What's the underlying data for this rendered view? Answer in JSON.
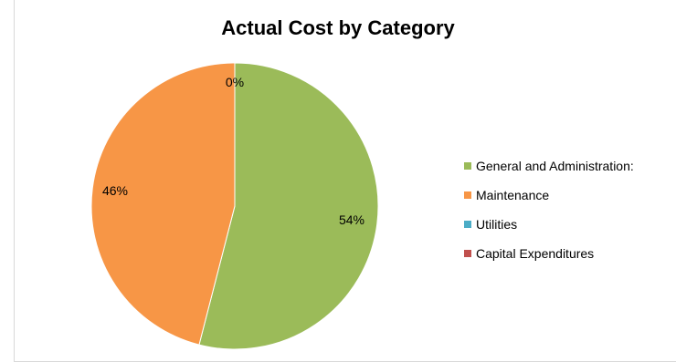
{
  "chart_data": {
    "type": "pie",
    "title": "Actual Cost by Category",
    "categories": [
      "General and Administration:",
      "Maintenance",
      "Utilities",
      "Capital Expenditures"
    ],
    "values": [
      54,
      46,
      0,
      0
    ],
    "data_labels": [
      "54%",
      "46%",
      "0%",
      ""
    ],
    "colors": [
      "#9BBB59",
      "#F79646",
      "#4BACC6",
      "#C0504D"
    ],
    "legend_position": "right"
  }
}
